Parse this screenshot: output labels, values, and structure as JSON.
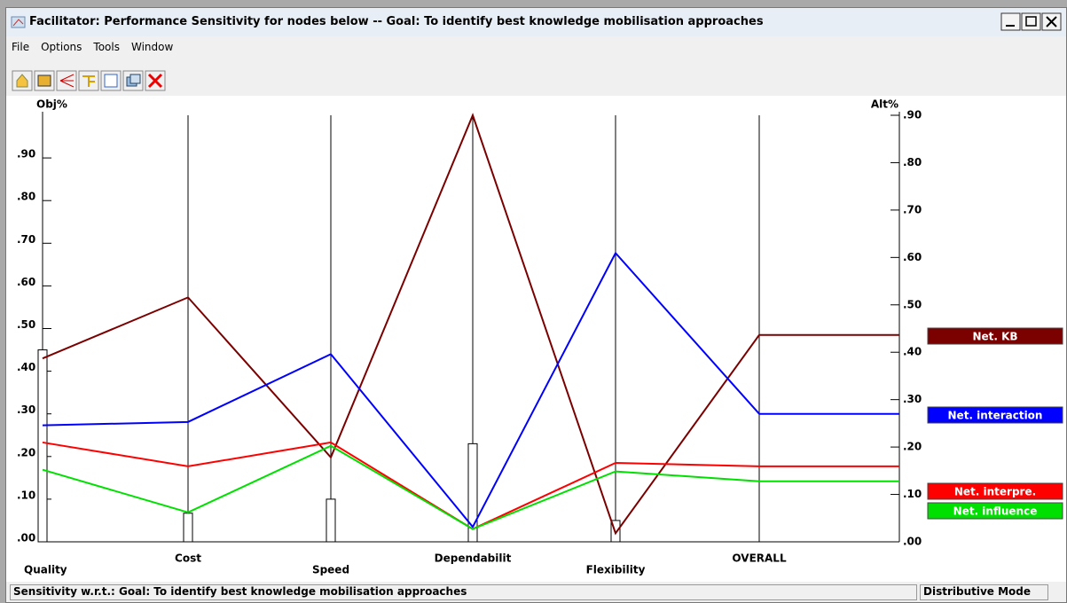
{
  "window": {
    "title": "Facilitator: Performance Sensitivity for nodes below -- Goal: To identify best knowledge mobilisation approaches",
    "menu": [
      "File",
      "Options",
      "Tools",
      "Window"
    ],
    "status": "Sensitivity w.r.t.: Goal: To identify best knowledge mobilisation approaches",
    "mode": "Distributive Mode"
  },
  "chart_data": {
    "type": "line",
    "y_label": "Obj%",
    "y2_label": "Alt%",
    "categories": [
      "Quality",
      "Cost",
      "Speed",
      "Dependabilit",
      "Flexibility",
      "OVERALL"
    ],
    "weights": [
      0.45,
      0.067,
      0.1,
      0.23,
      0.05
    ],
    "series": [
      {
        "name": "Net. KB",
        "color": "#7b0000",
        "values": [
          0.43,
          0.573,
          0.198,
          1.0,
          0.02,
          0.485
        ]
      },
      {
        "name": "Net. interaction",
        "color": "#0000ff",
        "values": [
          0.273,
          0.281,
          0.44,
          0.035,
          0.677,
          0.3
        ]
      },
      {
        "name": "Net. interpre.",
        "color": "#ff0000",
        "values": [
          0.233,
          0.177,
          0.233,
          0.03,
          0.185,
          0.177
        ]
      },
      {
        "name": "Net. influence",
        "color": "#00e000",
        "values": [
          0.169,
          0.069,
          0.225,
          0.03,
          0.165,
          0.142
        ]
      }
    ],
    "ylim": [
      0,
      1
    ],
    "yticks": [
      {
        "value": 0,
        "label": ".00"
      },
      {
        "value": 0.1,
        "label": ".10"
      },
      {
        "value": 0.2,
        "label": ".20"
      },
      {
        "value": 0.3,
        "label": ".30"
      },
      {
        "value": 0.4,
        "label": ".40"
      },
      {
        "value": 0.5,
        "label": ".50"
      },
      {
        "value": 0.6,
        "label": ".60"
      },
      {
        "value": 0.7,
        "label": ".70"
      },
      {
        "value": 0.8,
        "label": ".80"
      },
      {
        "value": 0.9,
        "label": ".90"
      }
    ],
    "y2lim": [
      0,
      0.9
    ],
    "y2ticks": [
      {
        "value": 0,
        "label": ".00"
      },
      {
        "value": 0.1,
        "label": ".10"
      },
      {
        "value": 0.2,
        "label": ".20"
      },
      {
        "value": 0.3,
        "label": ".30"
      },
      {
        "value": 0.4,
        "label": ".40"
      },
      {
        "value": 0.5,
        "label": ".50"
      },
      {
        "value": 0.6,
        "label": ".60"
      },
      {
        "value": 0.7,
        "label": ".70"
      },
      {
        "value": 0.8,
        "label": ".80"
      },
      {
        "value": 0.9,
        "label": ".90"
      }
    ]
  }
}
